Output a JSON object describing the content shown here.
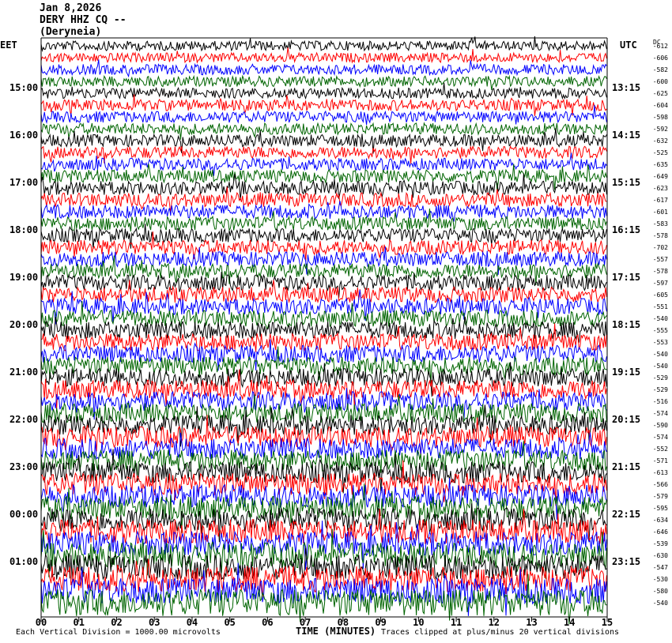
{
  "header": {
    "date": "Jan 8,2026",
    "station": "DERY HHZ CQ --",
    "location": "(Deryneia)"
  },
  "labels": {
    "left_tz": "EET",
    "right_tz": "UTC",
    "dc_label": "DC",
    "x_axis_title": "TIME (MINUTES)",
    "footer_left": "Each Vertical Division = 1000.00 microvolts",
    "footer_right": "Traces clipped at plus/minus 20 vertical divisions"
  },
  "colors": {
    "trace_cycle": [
      "#000000",
      "#ff0000",
      "#0000ff",
      "#006400"
    ],
    "grid": "#000000",
    "background": "#ffffff"
  },
  "chart_data": {
    "type": "line",
    "title": "",
    "xlabel": "TIME (MINUTES)",
    "ylabel": "",
    "xlim": [
      0,
      15
    ],
    "x_ticks": [
      "00",
      "01",
      "02",
      "03",
      "04",
      "05",
      "06",
      "07",
      "08",
      "09",
      "10",
      "11",
      "12",
      "13",
      "14",
      "15"
    ],
    "traces_per_hour": 4,
    "trace_count": 48,
    "left_hour_labels": [
      "15:00",
      "16:00",
      "17:00",
      "18:00",
      "19:00",
      "20:00",
      "21:00",
      "22:00",
      "23:00",
      "00:00",
      "01:00"
    ],
    "right_hour_labels": [
      "13:15",
      "14:15",
      "15:15",
      "16:15",
      "17:15",
      "18:15",
      "19:15",
      "20:15",
      "21:15",
      "22:15",
      "23:15"
    ],
    "dc_offsets": [
      -612,
      -606,
      -582,
      -600,
      -625,
      -604,
      -598,
      -592,
      -632,
      -525,
      -635,
      -649,
      -623,
      -617,
      -601,
      -583,
      -578,
      -702,
      -557,
      -578,
      -597,
      -605,
      -551,
      -540,
      -555,
      -553,
      -540,
      -540,
      -529,
      -529,
      -516,
      -574,
      -590,
      -574,
      -552,
      -571,
      -613,
      -566,
      -579,
      -595,
      -634,
      -646,
      -539,
      -630,
      -547,
      -530,
      -580,
      -540
    ],
    "amplitude_trend": [
      0.55,
      0.55,
      0.6,
      0.6,
      0.6,
      0.65,
      0.65,
      0.65,
      0.7,
      0.7,
      0.7,
      0.75,
      0.8,
      0.8,
      0.8,
      0.8,
      0.8,
      0.85,
      0.85,
      0.85,
      0.9,
      0.9,
      0.95,
      0.95,
      1.0,
      1.0,
      1.0,
      1.05,
      1.05,
      1.1,
      1.1,
      1.15,
      1.15,
      1.2,
      1.2,
      1.25,
      1.25,
      1.3,
      1.3,
      1.35,
      1.35,
      1.4,
      1.4,
      1.45,
      1.45,
      1.5,
      1.5,
      1.55
    ]
  }
}
